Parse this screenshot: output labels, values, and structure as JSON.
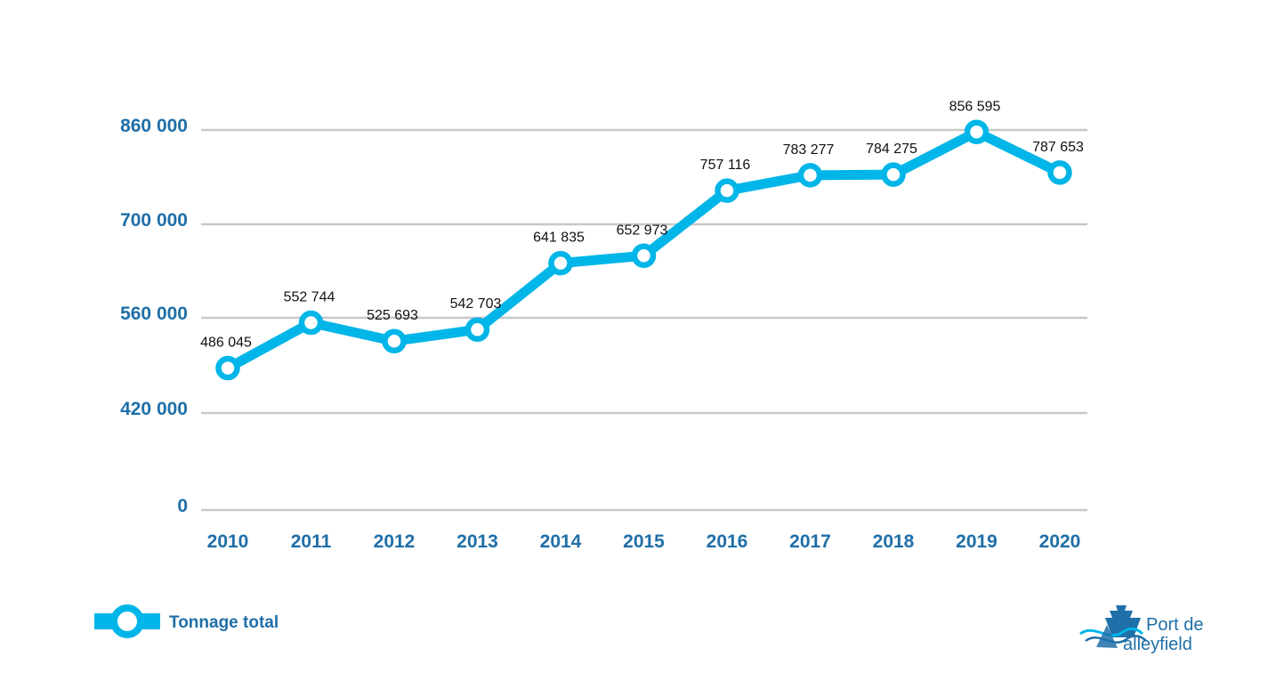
{
  "chart_data": {
    "type": "line",
    "title": "",
    "xlabel": "",
    "ylabel": "",
    "categories": [
      "2010",
      "2011",
      "2012",
      "2013",
      "2014",
      "2015",
      "2016",
      "2017",
      "2018",
      "2019",
      "2020"
    ],
    "series": [
      {
        "name": "Tonnage total",
        "color": "#00b5e8",
        "values": [
          486045,
          552744,
          525693,
          542703,
          641835,
          652973,
          757116,
          783277,
          784275,
          856595,
          787653
        ],
        "labels": [
          "486 045",
          "552 744",
          "525 693",
          "542 703",
          "641 835",
          "652 973",
          "757 116",
          "783 277",
          "784 275",
          "856 595",
          "787 653"
        ]
      }
    ],
    "yticks": [
      {
        "value": 0,
        "label": "0"
      },
      {
        "value": 420000,
        "label": "420 000"
      },
      {
        "value": 560000,
        "label": "560 000"
      },
      {
        "value": 700000,
        "label": "700 000"
      },
      {
        "value": 860000,
        "label": "860 000"
      }
    ],
    "grid": true,
    "legend_position": "bottom-left",
    "tick_color": "#1f6fa8",
    "grid_color": "#c8c8c8"
  },
  "logo": {
    "line1": "Port de",
    "line2": "alleyfield",
    "icon": "ship-wave-icon"
  }
}
